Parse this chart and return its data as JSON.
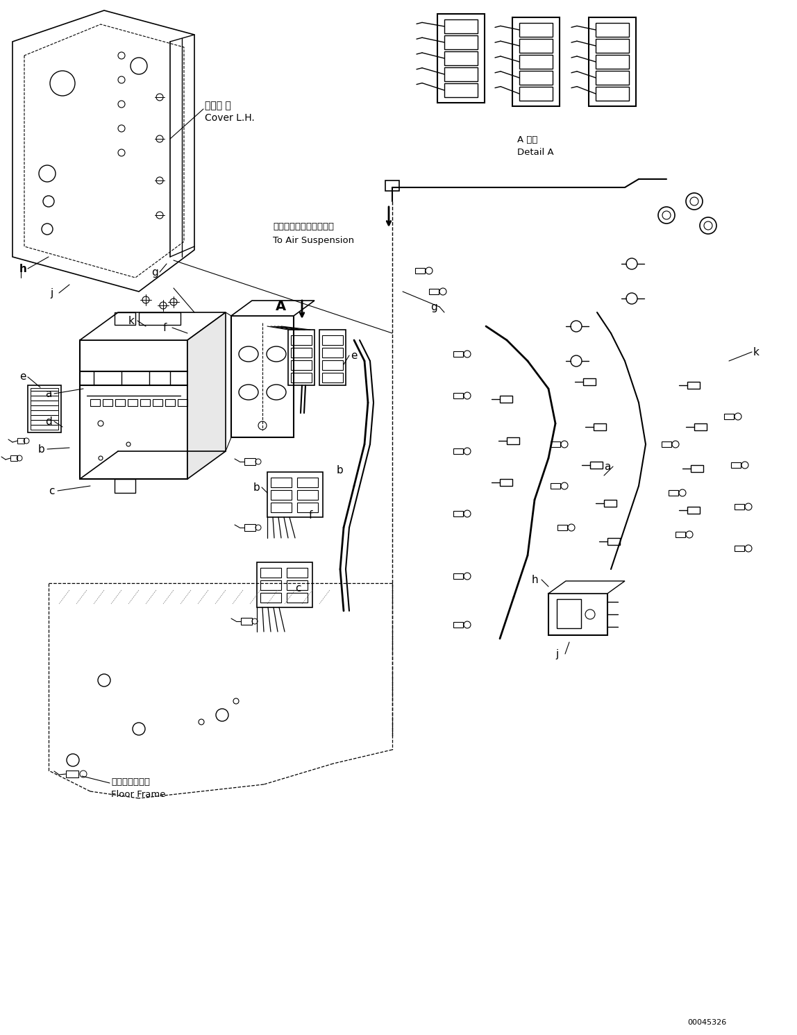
{
  "bg_color": "#ffffff",
  "line_color": "#000000",
  "fig_width": 11.48,
  "fig_height": 14.91,
  "dpi": 100,
  "part_number": "00045326",
  "labels": {
    "cover_lh_jp": "カバー 左",
    "cover_lh_en": "Cover L.H.",
    "floor_frame_jp": "フロアフレーム",
    "floor_frame_en": "Floor Frame",
    "air_suspension_jp": "エアーサスペンションへ",
    "air_suspension_en": "To Air Suspension",
    "detail_jp": "A 詳細",
    "detail_en": "Detail A"
  }
}
